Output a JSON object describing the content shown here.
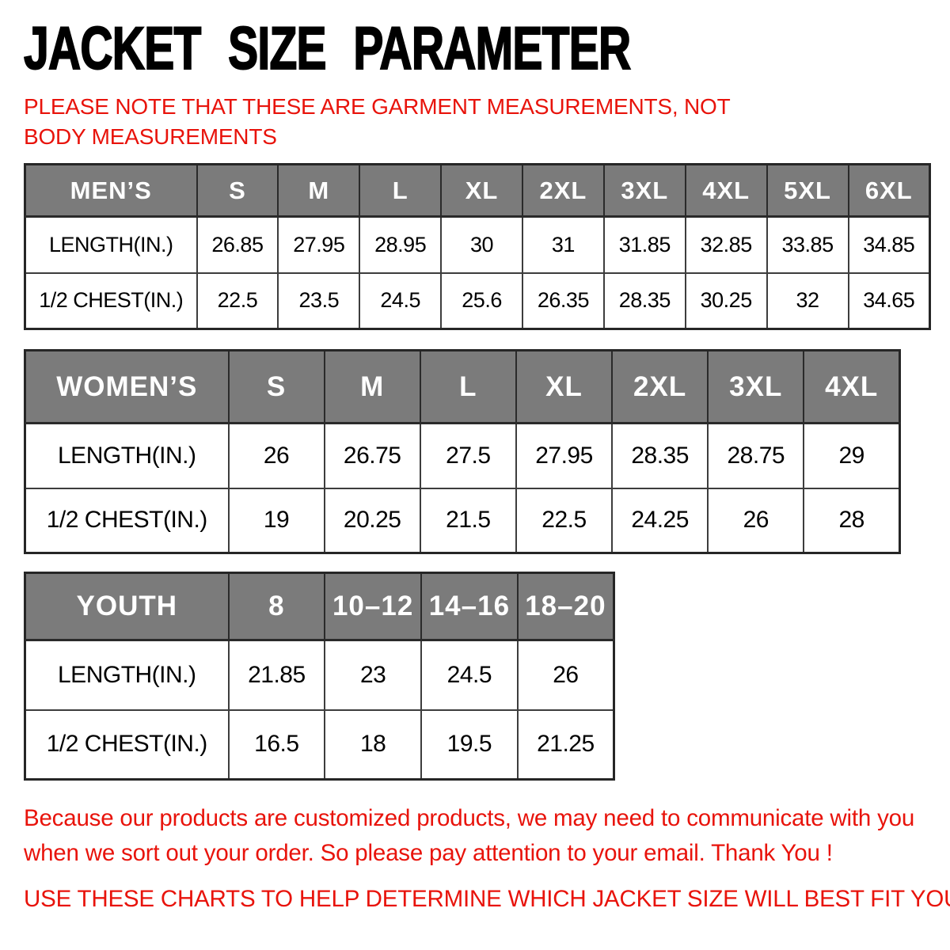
{
  "header": {
    "title": "JACKET SIZE PARAMETER",
    "note": "PLEASE NOTE THAT THESE ARE GARMENT MEASUREMENTS, NOT BODY MEASUREMENTS"
  },
  "colors": {
    "accent_red": "#e8130b",
    "table_header_bg": "#7b7b7b",
    "table_header_text": "#ffffff",
    "table_border": "#2f2f2f",
    "title_text": "#000000"
  },
  "tables": [
    {
      "id": "mens",
      "header": [
        "MEN’S",
        "S",
        "M",
        "L",
        "XL",
        "2XL",
        "3XL",
        "4XL",
        "5XL",
        "6XL"
      ],
      "rows": [
        {
          "label": "LENGTH(IN.)",
          "values": [
            "26.85",
            "27.95",
            "28.95",
            "30",
            "31",
            "31.85",
            "32.85",
            "33.85",
            "34.85"
          ]
        },
        {
          "label": "1/2 CHEST(IN.)",
          "values": [
            "22.5",
            "23.5",
            "24.5",
            "25.6",
            "26.35",
            "28.35",
            "30.25",
            "32",
            "34.65"
          ]
        }
      ]
    },
    {
      "id": "womens",
      "header": [
        "WOMEN’S",
        "S",
        "M",
        "L",
        "XL",
        "2XL",
        "3XL",
        "4XL"
      ],
      "rows": [
        {
          "label": "LENGTH(IN.)",
          "values": [
            "26",
            "26.75",
            "27.5",
            "27.95",
            "28.35",
            "28.75",
            "29"
          ]
        },
        {
          "label": "1/2 CHEST(IN.)",
          "values": [
            "19",
            "20.25",
            "21.5",
            "22.5",
            "24.25",
            "26",
            "28"
          ]
        }
      ]
    },
    {
      "id": "youth",
      "header": [
        "YOUTH",
        "8",
        "10–12",
        "14–16",
        "18–20"
      ],
      "rows": [
        {
          "label": "LENGTH(IN.)",
          "values": [
            "21.85",
            "23",
            "24.5",
            "26"
          ]
        },
        {
          "label": "1/2 CHEST(IN.)",
          "values": [
            "16.5",
            "18",
            "19.5",
            "21.25"
          ]
        }
      ]
    }
  ],
  "footer": {
    "communication_note": "Because our products are customized products, we may need to communicate with you when we sort out your order. So please pay attention to your email. Thank You !",
    "usage_note": "USE THESE CHARTS TO HELP DETERMINE WHICH JACKET SIZE WILL BEST FIT YOU."
  }
}
